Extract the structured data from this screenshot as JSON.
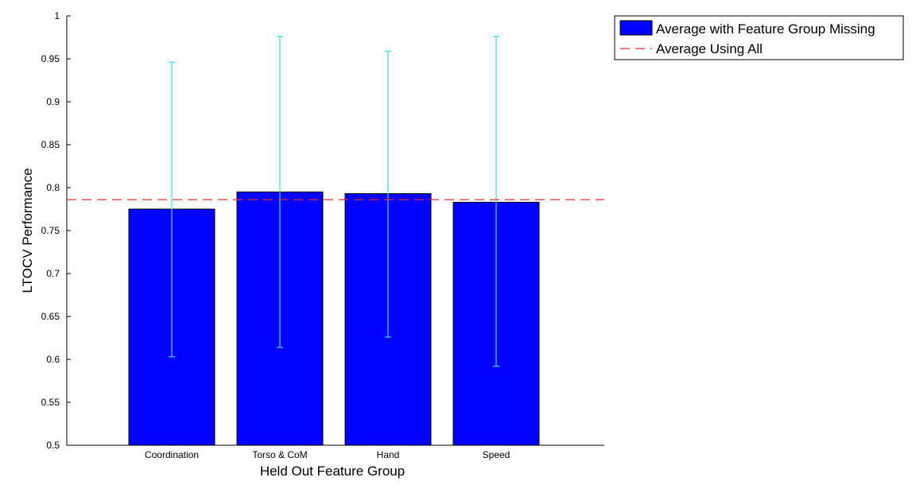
{
  "chart_data": {
    "type": "bar",
    "title": "",
    "xlabel": "Held Out Feature Group",
    "ylabel": "LTOCV Performance",
    "ylim": [
      0.5,
      1
    ],
    "yticks": [
      "0.5",
      "0.55",
      "0.6",
      "0.65",
      "0.7",
      "0.75",
      "0.8",
      "0.85",
      "0.9",
      "0.95",
      "1"
    ],
    "categories": [
      "Coordination",
      "Torso & CoM",
      "Hand",
      "Speed"
    ],
    "series": [
      {
        "name": "Average with Feature Group Missing",
        "values": [
          0.775,
          0.795,
          0.793,
          0.783
        ],
        "error_low": [
          0.603,
          0.614,
          0.626,
          0.592
        ],
        "error_high": [
          0.946,
          0.976,
          0.959,
          0.976
        ],
        "color": "#0000ff",
        "error_color": "#33dddd"
      }
    ],
    "reference_line": {
      "name": "Average Using All",
      "value": 0.786,
      "color": "#e03030",
      "style": "dashed"
    },
    "grid": false,
    "legend_position": "top-right outside"
  }
}
